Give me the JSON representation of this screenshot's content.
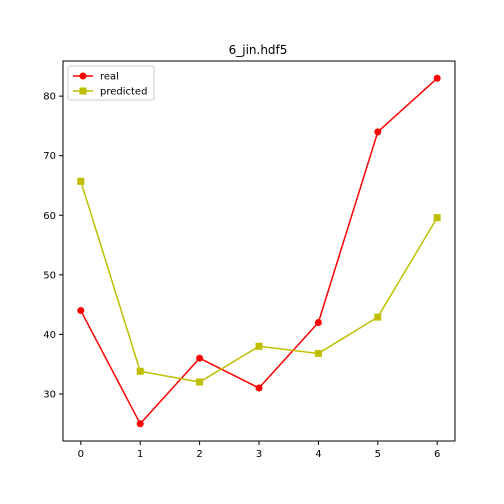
{
  "chart_data": {
    "type": "line",
    "title": "6_jin.hdf5",
    "xlabel": "",
    "ylabel": "",
    "x": [
      0,
      1,
      2,
      3,
      4,
      5,
      6
    ],
    "xlim": [
      -0.3,
      6.3
    ],
    "ylim": [
      22.1,
      85.9
    ],
    "xticks": [
      0,
      1,
      2,
      3,
      4,
      5,
      6
    ],
    "yticks": [
      30,
      40,
      50,
      60,
      70,
      80
    ],
    "grid": false,
    "legend_position": "upper-left",
    "series": [
      {
        "name": "real",
        "color": "#ff0000",
        "marker": "circle",
        "values": [
          44,
          25,
          36,
          31,
          42,
          74,
          83
        ]
      },
      {
        "name": "predicted",
        "color": "#bfbf00",
        "marker": "square",
        "values": [
          65.7,
          33.8,
          32.0,
          38.0,
          36.8,
          42.9,
          59.6
        ]
      }
    ]
  }
}
